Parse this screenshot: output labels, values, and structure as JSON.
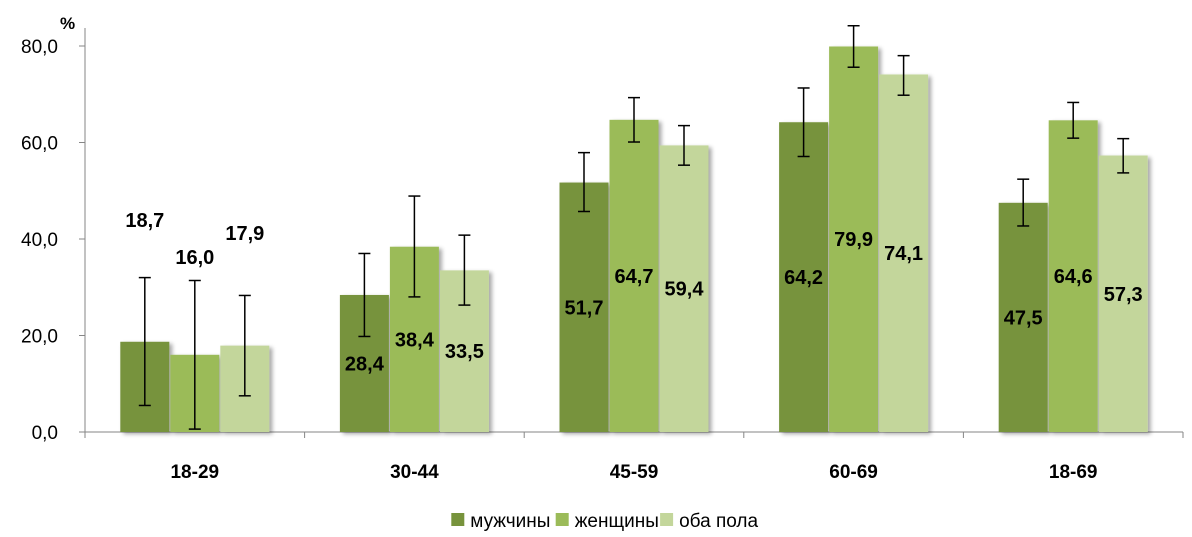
{
  "chart_data": {
    "type": "bar",
    "unit": "%",
    "categories": [
      "18-29",
      "30-44",
      "45-59",
      "60-69",
      "18-69"
    ],
    "series": [
      {
        "name": "мужчины",
        "color": "#77933c",
        "values": [
          18.7,
          28.4,
          51.7,
          64.2,
          47.5
        ],
        "value_labels": [
          "18,7",
          "28,4",
          "51,7",
          "64,2",
          "47,5"
        ],
        "error_low": [
          5.5,
          19.8,
          45.7,
          57.1,
          42.7
        ],
        "error_high": [
          32.0,
          37.0,
          57.9,
          71.3,
          52.4
        ]
      },
      {
        "name": "женщины",
        "color": "#9bbb59",
        "values": [
          16.0,
          38.4,
          64.7,
          79.9,
          64.6
        ],
        "value_labels": [
          "16,0",
          "38,4",
          "64,7",
          "79,9",
          "64,6"
        ],
        "error_low": [
          0.6,
          28.0,
          60.1,
          75.6,
          60.9
        ],
        "error_high": [
          31.4,
          48.9,
          69.3,
          84.2,
          68.3
        ]
      },
      {
        "name": "оба пола",
        "color": "#c3d69b",
        "values": [
          17.9,
          33.5,
          59.4,
          74.1,
          57.3
        ],
        "value_labels": [
          "17,9",
          "33,5",
          "59,4",
          "74,1",
          "57,3"
        ],
        "error_low": [
          7.5,
          26.3,
          55.3,
          69.8,
          53.7
        ],
        "error_high": [
          28.3,
          40.8,
          63.5,
          78.0,
          60.8
        ]
      }
    ],
    "ylim": [
      0,
      80
    ],
    "yticks": [
      0,
      20,
      40,
      60,
      80
    ],
    "ytick_labels": [
      "0,0",
      "20,0",
      "40,0",
      "60,0",
      "80,0"
    ],
    "grid": false,
    "legend_position": "bottom-center",
    "error_bars": true
  }
}
